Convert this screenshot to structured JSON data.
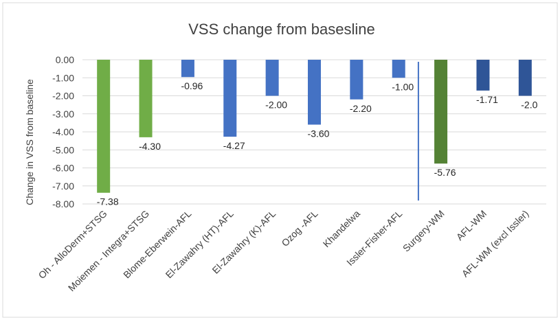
{
  "chart_data": {
    "type": "bar",
    "title": "VSS change from basesline",
    "ylabel": "Change in VSS from baseline",
    "xlabel": "",
    "ylim": [
      -8,
      0
    ],
    "yticks": [
      "0.00",
      "-1.00",
      "-2.00",
      "-3.00",
      "-4.00",
      "-5.00",
      "-6.00",
      "-7.00",
      "-8.00"
    ],
    "grid": true,
    "categories": [
      "Oh - AlloDerm+STSG",
      "Moiemen - Integra+STSG",
      "Blome-Eberwein-AFL",
      "El-Zawahry (HT)-AFL",
      "El-Zawahry (K)-AFL",
      "Ozog -AFL",
      "Khandelwa",
      "Issler-Fisher-AFL",
      "Surgery-WM",
      "AFL-WM",
      "AFL-WM (excl Issler)"
    ],
    "values": [
      -7.38,
      -4.3,
      -0.96,
      -4.27,
      -2.0,
      -3.6,
      -2.2,
      -1.0,
      -5.76,
      -1.71,
      -2.0
    ],
    "data_labels": [
      "-7.38",
      "-4.30",
      "-0.96",
      "-4.27",
      "-2.00",
      "-3.60",
      "-2.20",
      "-1.00",
      "-5.76",
      "-1.71",
      "-2.0"
    ],
    "colors": [
      "#70ad47",
      "#70ad47",
      "#4472c4",
      "#4472c4",
      "#4472c4",
      "#4472c4",
      "#4472c4",
      "#4472c4",
      "#548235",
      "#2f5597",
      "#2f5597"
    ],
    "divider_after_index": 7,
    "divider_color": "#4472c4"
  }
}
